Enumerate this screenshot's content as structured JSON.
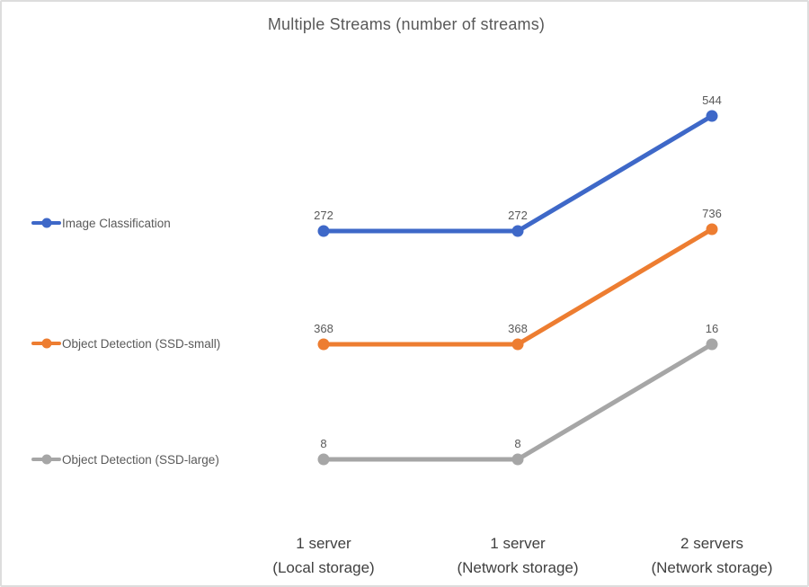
{
  "colors": {
    "background": "#ffffff",
    "border": "#dddddd",
    "title": "#595959",
    "data_labels": "#595959",
    "axis_labels": "#404040",
    "legend_text": "#595959"
  },
  "chart_data": {
    "type": "line",
    "title": "Multiple Streams (number of streams)",
    "categories": [
      "1 server (Local storage)",
      "1 server (Network storage)",
      "2 servers (Network storage)"
    ],
    "categories_lines": [
      [
        "1 server",
        "(Local storage)"
      ],
      [
        "1 server",
        "(Network storage)"
      ],
      [
        "2 servers",
        "(Network storage)"
      ]
    ],
    "series": [
      {
        "name": "Image Classification",
        "values": [
          272,
          272,
          544
        ],
        "color": "#3E68C8"
      },
      {
        "name": "Object Detection (SSD-small)",
        "values": [
          368,
          368,
          736
        ],
        "color": "#ED7D31"
      },
      {
        "name": "Object Detection (SSD-large)",
        "values": [
          8,
          8,
          16
        ],
        "color": "#A6A6A6"
      }
    ],
    "data_labels": true,
    "legend_position": "left",
    "axes": "none",
    "grid": false
  }
}
